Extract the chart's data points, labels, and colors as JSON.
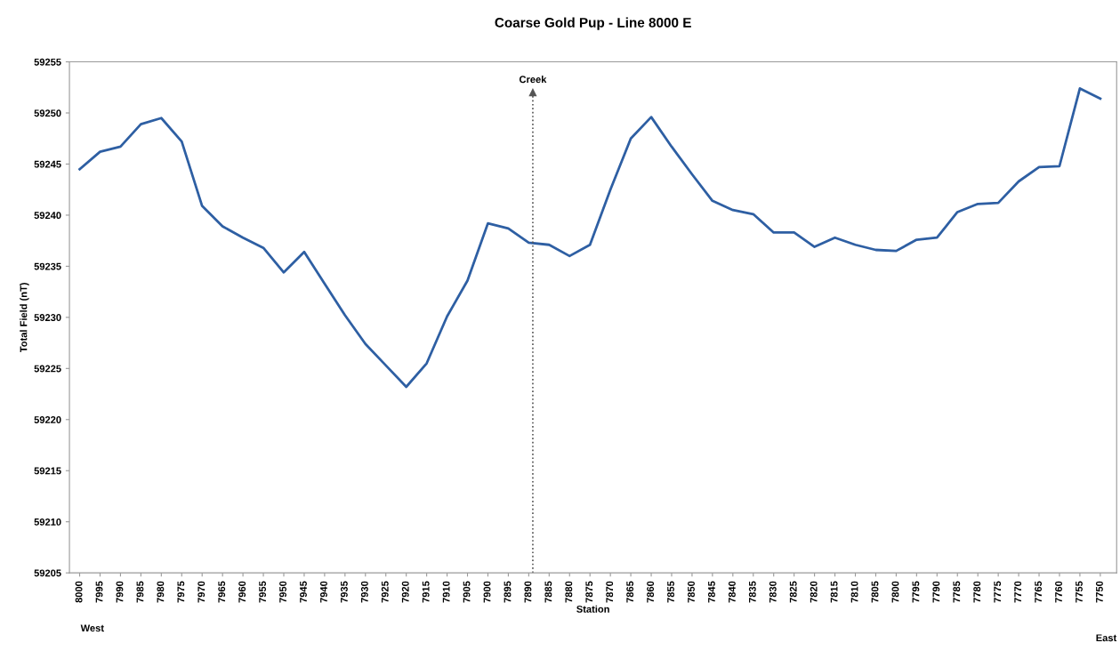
{
  "chart_data": {
    "type": "line",
    "title": "Coarse Gold Pup - Line 8000 E",
    "xlabel": "Station",
    "ylabel": "Total Field (nT)",
    "x": [
      8000,
      7995,
      7990,
      7985,
      7980,
      7975,
      7970,
      7965,
      7960,
      7955,
      7950,
      7945,
      7940,
      7935,
      7930,
      7925,
      7920,
      7915,
      7910,
      7905,
      7900,
      7895,
      7890,
      7885,
      7880,
      7875,
      7870,
      7865,
      7860,
      7855,
      7850,
      7845,
      7840,
      7835,
      7830,
      7825,
      7820,
      7815,
      7810,
      7805,
      7800,
      7795,
      7790,
      7785,
      7780,
      7775,
      7770,
      7765,
      7760,
      7755,
      7750
    ],
    "series": [
      {
        "color": "#2e5fa3",
        "values": [
          59244.5,
          59246.2,
          59246.7,
          59248.9,
          59249.5,
          59247.2,
          59240.9,
          59238.9,
          59237.8,
          59236.8,
          59234.4,
          59236.4,
          59233.3,
          59230.2,
          59227.4,
          59225.3,
          59223.2,
          59225.5,
          59230.1,
          59233.6,
          59239.2,
          59238.7,
          59237.3,
          59237.1,
          59236.0,
          59237.1,
          59242.5,
          59247.5,
          59249.6,
          59246.7,
          59244.0,
          59241.4,
          59240.5,
          59240.1,
          59238.3,
          59238.3,
          59236.9,
          59237.8,
          59237.1,
          59236.6,
          59236.5,
          59237.6,
          59237.8,
          59240.3,
          59241.1,
          59241.2,
          59243.3,
          59244.7,
          59244.8,
          59252.4,
          59251.4
        ]
      }
    ],
    "xlim": [
      8002.5,
      7746
    ],
    "xticks": [
      8000,
      7995,
      7990,
      7985,
      7980,
      7975,
      7970,
      7965,
      7960,
      7955,
      7950,
      7945,
      7940,
      7935,
      7930,
      7925,
      7920,
      7915,
      7910,
      7905,
      7900,
      7895,
      7890,
      7885,
      7880,
      7875,
      7870,
      7865,
      7860,
      7855,
      7850,
      7845,
      7840,
      7835,
      7830,
      7825,
      7820,
      7815,
      7810,
      7805,
      7800,
      7795,
      7790,
      7785,
      7780,
      7775,
      7770,
      7765,
      7760,
      7755,
      7750
    ],
    "ylim": [
      59205,
      59255
    ],
    "yticks": [
      59205,
      59210,
      59215,
      59220,
      59225,
      59230,
      59235,
      59240,
      59245,
      59250,
      59255
    ],
    "ref_lines": [
      {
        "axis": "x",
        "value": 7889,
        "label": "Creek",
        "line_style": "dotted",
        "color": "#555555"
      }
    ],
    "annotations": [
      "West",
      "East"
    ],
    "grid": false,
    "legend": false,
    "marker": "none",
    "line_style": "solid"
  }
}
